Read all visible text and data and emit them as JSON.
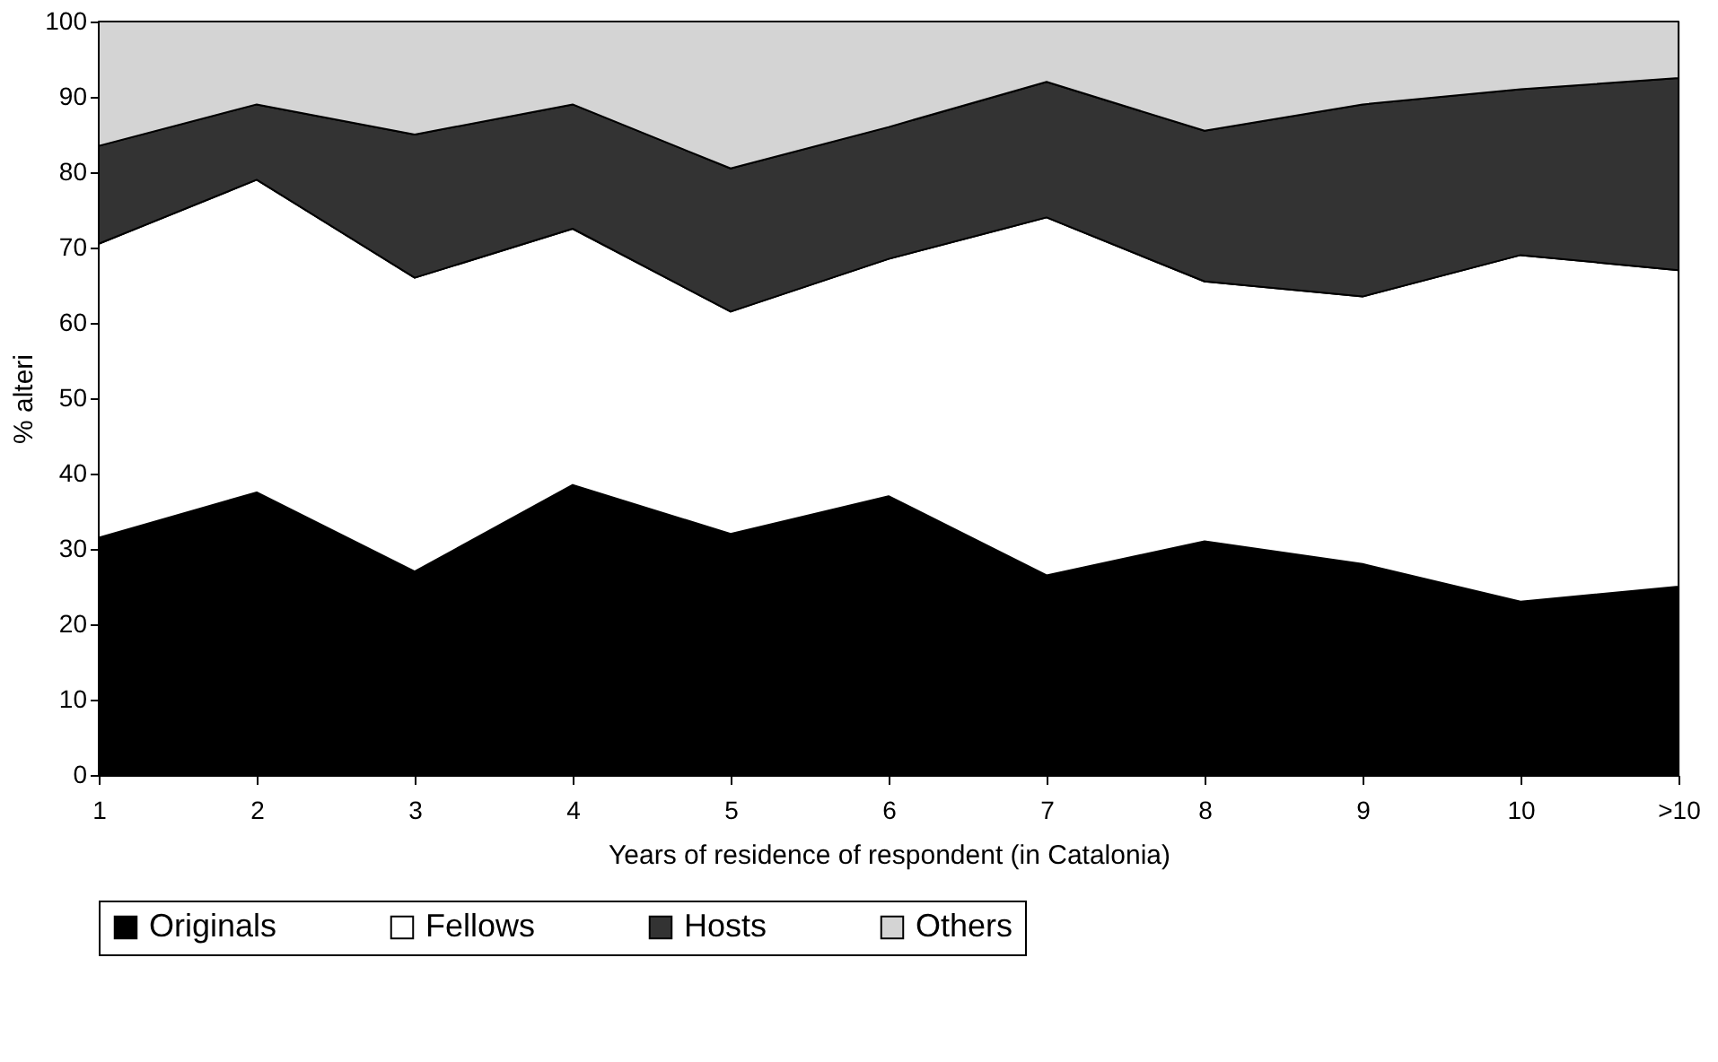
{
  "chart_data": {
    "type": "area",
    "stacked": true,
    "xlabel": "Years of residence of respondent (in Catalonia)",
    "ylabel": "% alteri",
    "categories": [
      "1",
      "2",
      "3",
      "4",
      "5",
      "6",
      "7",
      "8",
      "9",
      "10",
      ">10"
    ],
    "series": [
      {
        "name": "Originals",
        "color": "#000000",
        "values": [
          31.5,
          37.5,
          27,
          38.5,
          32,
          37,
          26.5,
          31,
          28,
          23,
          25
        ]
      },
      {
        "name": "Fellows",
        "color": "#ffffff",
        "values": [
          39,
          41.5,
          39,
          34,
          29.5,
          31.5,
          47.5,
          34.5,
          35.5,
          46,
          42
        ]
      },
      {
        "name": "Hosts",
        "color": "#333333",
        "values": [
          13,
          10,
          19,
          16.5,
          19,
          17.5,
          18,
          20,
          25.5,
          22,
          25.5
        ]
      },
      {
        "name": "Others",
        "color": "#d4d4d4",
        "values": [
          16.5,
          11,
          15,
          11,
          19.5,
          14,
          8,
          14.5,
          11,
          9,
          7.5
        ]
      }
    ],
    "ylim": [
      0,
      100
    ],
    "yticks": [
      0,
      10,
      20,
      30,
      40,
      50,
      60,
      70,
      80,
      90,
      100
    ],
    "legend": "bottom"
  }
}
